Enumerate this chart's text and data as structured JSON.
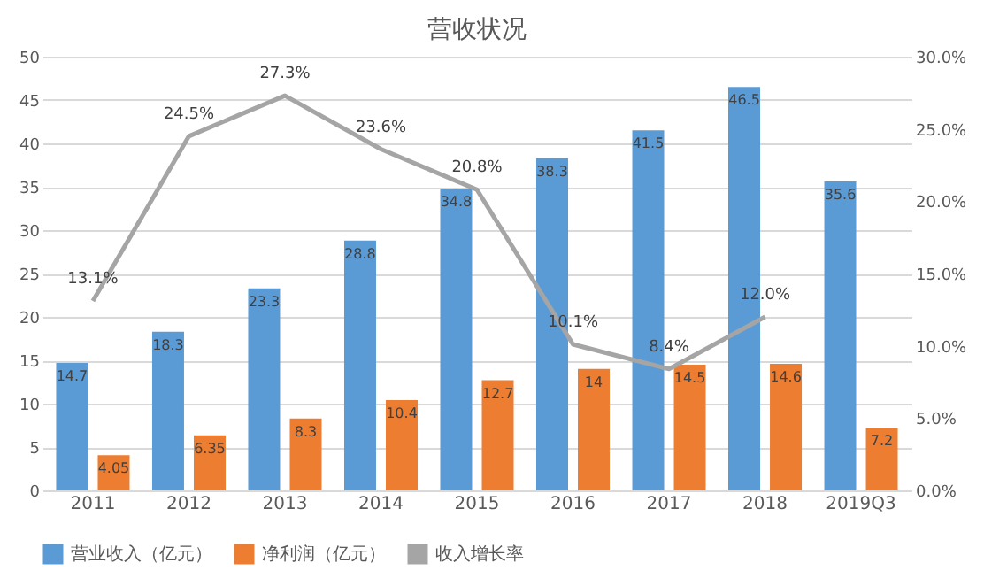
{
  "chart_data": {
    "type": "bar",
    "title": "营收状况",
    "categories": [
      "2011",
      "2012",
      "2013",
      "2014",
      "2015",
      "2016",
      "2017",
      "2018",
      "2019Q3"
    ],
    "series": [
      {
        "name": "营业收入（亿元）",
        "color": "#5b9bd5",
        "values": [
          14.7,
          18.3,
          23.3,
          28.8,
          34.8,
          38.3,
          41.5,
          46.5,
          35.6
        ]
      },
      {
        "name": "净利润（亿元）",
        "color": "#ed7d31",
        "values": [
          4.05,
          6.35,
          8.3,
          10.4,
          12.7,
          14,
          14.5,
          14.6,
          7.2
        ]
      },
      {
        "name": "收入增长率",
        "type": "line",
        "axis": "y2",
        "color": "#a5a5a5",
        "values": [
          13.1,
          24.5,
          27.3,
          23.6,
          20.8,
          10.1,
          8.4,
          12.0,
          null
        ],
        "value_labels": [
          "13.1%",
          "24.5%",
          "27.3%",
          "23.6%",
          "20.8%",
          "10.1%",
          "8.4%",
          "12.0%",
          null
        ]
      }
    ],
    "data_labels": true,
    "ylim": [
      0,
      50
    ],
    "yticks": [
      0,
      5,
      10,
      15,
      20,
      25,
      30,
      35,
      40,
      45,
      50
    ],
    "y2lim": [
      0,
      30
    ],
    "y2ticks": [
      {
        "value": 0,
        "label": "0.0%"
      },
      {
        "value": 5,
        "label": "5.0%"
      },
      {
        "value": 10,
        "label": "10.0%"
      },
      {
        "value": 15,
        "label": "15.0%"
      },
      {
        "value": 20,
        "label": "20.0%"
      },
      {
        "value": 25,
        "label": "25.0%"
      },
      {
        "value": 30,
        "label": "30.0%"
      }
    ],
    "grid": "y",
    "legend": "bottom"
  }
}
